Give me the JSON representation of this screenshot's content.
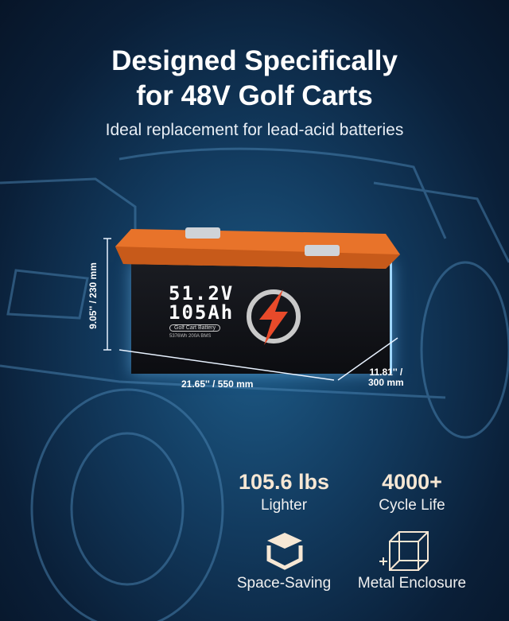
{
  "headline": {
    "line1": "Designed Specifically",
    "line2": "for 48V Golf Carts",
    "subtitle": "Ideal replacement for lead-acid batteries"
  },
  "battery": {
    "voltage": "51.2V",
    "capacity": "105Ah",
    "badge": "Golf Cart Battery",
    "specs": "5376Wh  200A BMS",
    "lid_color": "#e8732a",
    "logo_icon": "lightning-bolt-icon"
  },
  "dimensions": {
    "height": "9.05'' / 230 mm",
    "length": "21.65'' / 550 mm",
    "width_line1": "11.81'' /",
    "width_line2": "300 mm"
  },
  "features": [
    {
      "value": "105.6 lbs",
      "label": "Lighter"
    },
    {
      "value": "4000+",
      "label": "Cycle Life"
    },
    {
      "icon": "cube-open-icon",
      "label": "Space-Saving"
    },
    {
      "icon": "metal-box-icon",
      "label": "Metal Enclosure"
    }
  ],
  "colors": {
    "accent": "#f6e7d4",
    "background": "#0f3050"
  }
}
